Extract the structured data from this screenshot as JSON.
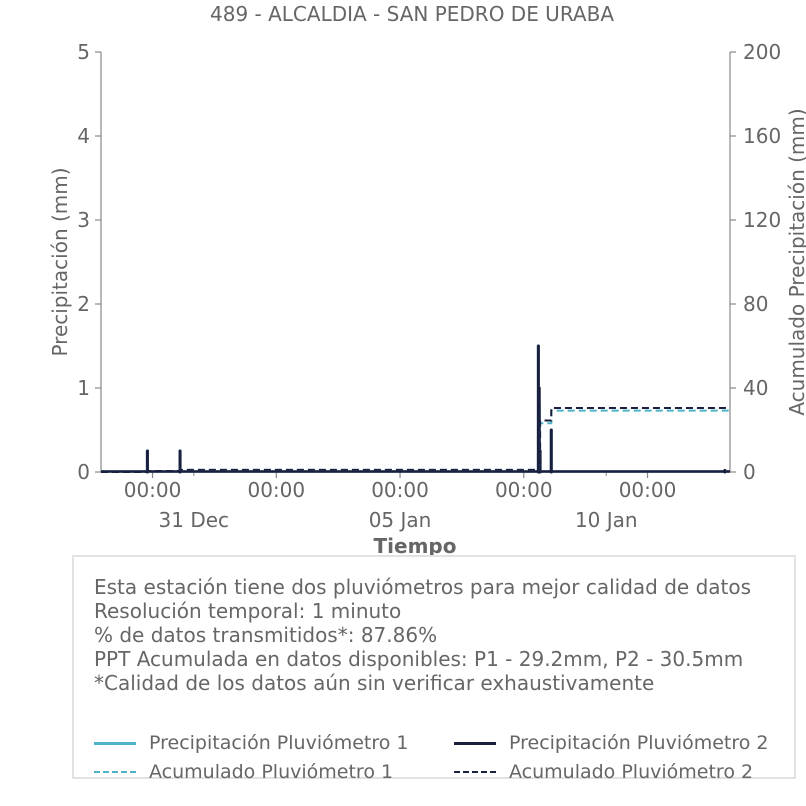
{
  "chart_data": {
    "type": "line",
    "title": "489 - ALCALDIA - SAN PEDRO DE URABA",
    "xlabel": "Tiempo",
    "ylabel": "Precipitación (mm)",
    "ylabel_right": "Acumulado Precipitación (mm)",
    "ylim": [
      0,
      5
    ],
    "ylim_right": [
      0,
      200
    ],
    "yticks": [
      0,
      1,
      2,
      3,
      4,
      5
    ],
    "yticks_right": [
      0,
      40,
      80,
      120,
      160,
      200
    ],
    "xlim": [
      "2023-12-28 18:00",
      "2024-01-13 00:00"
    ],
    "x_major_ticks": [
      {
        "x": "2023-12-30 00:00",
        "label": "00:00"
      },
      {
        "x": "2024-01-02 00:00",
        "label": "00:00"
      },
      {
        "x": "2024-01-05 00:00",
        "label": "00:00"
      },
      {
        "x": "2024-01-08 00:00",
        "label": "00:00"
      },
      {
        "x": "2024-01-11 00:00",
        "label": "00:00"
      }
    ],
    "x_date_labels": [
      {
        "x": "2023-12-31 00:00",
        "label": "31 Dec"
      },
      {
        "x": "2024-01-05 00:00",
        "label": "05 Jan"
      },
      {
        "x": "2024-01-10 00:00",
        "label": "10 Jan"
      }
    ],
    "grid": false,
    "legend_placement": "bottom",
    "series": [
      {
        "name": "Precipitación Pluviómetro 1",
        "axis": "left",
        "style": "solid",
        "color": "#4eb3c8",
        "x": [
          "2023-12-29 21:00",
          "2023-12-30 16:00",
          "2024-01-08 08:30",
          "2024-01-08 09:00",
          "2024-01-08 09:30",
          "2024-01-08 16:00"
        ],
        "y": [
          0.25,
          0.25,
          1.5,
          0.8,
          0.25,
          0.5
        ]
      },
      {
        "name": "Precipitación Pluviómetro 2",
        "axis": "left",
        "style": "solid",
        "color": "#1a1f3d",
        "x": [
          "2023-12-29 21:00",
          "2023-12-30 16:00",
          "2024-01-08 08:30",
          "2024-01-08 09:00",
          "2024-01-08 09:30",
          "2024-01-08 16:00",
          "2024-01-12 21:00"
        ],
        "y": [
          0.25,
          0.25,
          1.5,
          1.0,
          0.25,
          0.5,
          0.02
        ]
      },
      {
        "name": "Acumulado Pluviómetro 1",
        "axis": "right",
        "style": "dashed",
        "color": "#4eb3c8",
        "x": [
          "2023-12-28 18:00",
          "2023-12-29 21:00",
          "2023-12-30 16:00",
          "2024-01-08 08:30",
          "2024-01-08 09:30",
          "2024-01-08 16:00",
          "2024-01-13 00:00"
        ],
        "y": [
          0,
          0.5,
          1.0,
          1.0,
          23.2,
          29.2,
          29.2
        ]
      },
      {
        "name": "Acumulado Pluviómetro 2",
        "axis": "right",
        "style": "dashed",
        "color": "#1a1f3d",
        "x": [
          "2023-12-28 18:00",
          "2023-12-29 21:00",
          "2023-12-30 16:00",
          "2024-01-08 08:30",
          "2024-01-08 09:30",
          "2024-01-08 16:00",
          "2024-01-13 00:00"
        ],
        "y": [
          0,
          0.5,
          1.0,
          1.0,
          24.5,
          30.5,
          30.5
        ]
      }
    ]
  },
  "info": {
    "lines": [
      "Esta estación tiene dos pluviómetros para mejor calidad de datos",
      "Resolución temporal: 1 minuto",
      "% de datos transmitidos*: 87.86%",
      "PPT Acumulada en datos disponibles: P1 - 29.2mm, P2 - 30.5mm",
      "*Calidad de los datos aún sin verificar exhaustivamente"
    ]
  },
  "legend": {
    "items": [
      {
        "label": "Precipitación Pluviómetro 1",
        "color": "#4eb3c8",
        "style": "solid"
      },
      {
        "label": "Precipitación Pluviómetro 2",
        "color": "#1a1f3d",
        "style": "solid"
      },
      {
        "label": "Acumulado Pluviómetro 1",
        "color": "#4eb3c8",
        "style": "dashed"
      },
      {
        "label": "Acumulado Pluviómetro 2",
        "color": "#1a1f3d",
        "style": "dashed"
      }
    ]
  }
}
